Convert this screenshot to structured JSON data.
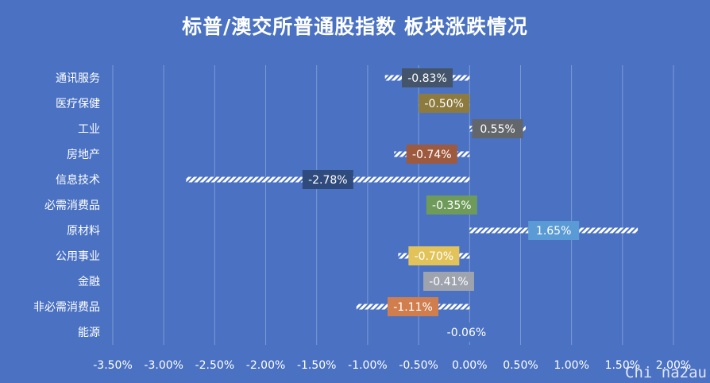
{
  "chart_data": {
    "type": "bar",
    "orientation": "horizontal",
    "title": "标普/澳交所普通股指数 板块涨跌情况",
    "categories": [
      "通讯服务",
      "医疗保健",
      "工业",
      "房地产",
      "信息技术",
      "必需消费品",
      "原材料",
      "公用事业",
      "金融",
      "非必需消费品",
      "能源"
    ],
    "values": [
      -0.83,
      -0.5,
      0.55,
      -0.74,
      -2.78,
      -0.35,
      1.65,
      -0.7,
      -0.41,
      -1.11,
      -0.06
    ],
    "value_labels": [
      "-0.83%",
      "-0.50%",
      "0.55%",
      "-0.74%",
      "-2.78%",
      "-0.35%",
      "1.65%",
      "-0.70%",
      "-0.41%",
      "-1.11%",
      "-0.06%"
    ],
    "label_colors": [
      "#44546a",
      "#8c7a3e",
      "#63666b",
      "#9e5a3e",
      "#2f4a7c",
      "#6e9b5a",
      "#5b9bd5",
      "#e2c35a",
      "#9ea3ae",
      "#d17e4f",
      "#4a71c2"
    ],
    "xlim": [
      -3.5,
      2.0
    ],
    "xticks": [
      -3.5,
      -3.0,
      -2.5,
      -2.0,
      -1.5,
      -1.0,
      -0.5,
      0.0,
      0.5,
      1.0,
      1.5,
      2.0
    ],
    "xtick_labels": [
      "-3.50%",
      "-3.00%",
      "-2.50%",
      "-2.00%",
      "-1.50%",
      "-1.00%",
      "-0.50%",
      "0.00%",
      "0.50%",
      "1.00%",
      "1.50%",
      "2.00%"
    ],
    "grid": true,
    "bar_fill": "white diagonal hatch",
    "background_color": "#4a71c2"
  },
  "watermark": "Chi na2au"
}
